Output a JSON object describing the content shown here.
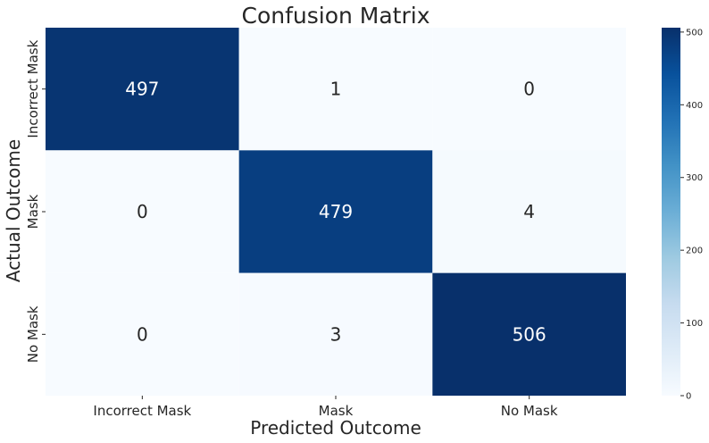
{
  "chart_data": {
    "type": "heatmap",
    "title": "Confusion Matrix",
    "xlabel": "Predicted Outcome",
    "ylabel": "Actual Outcome",
    "x_categories": [
      "Incorrect Mask",
      "Mask",
      "No Mask"
    ],
    "y_categories": [
      "Incorrect Mask",
      "Mask",
      "No Mask"
    ],
    "values": [
      [
        497,
        1,
        0
      ],
      [
        0,
        479,
        4
      ],
      [
        0,
        3,
        506
      ]
    ],
    "colormap": "Blues",
    "colorbar": {
      "range": [
        0,
        506
      ],
      "ticks": [
        0,
        100,
        200,
        300,
        400,
        500
      ]
    },
    "colors": {
      "low": "#f7fbff",
      "high": "#08306b",
      "text_dark": "#262626",
      "text_light": "#ffffff"
    }
  }
}
